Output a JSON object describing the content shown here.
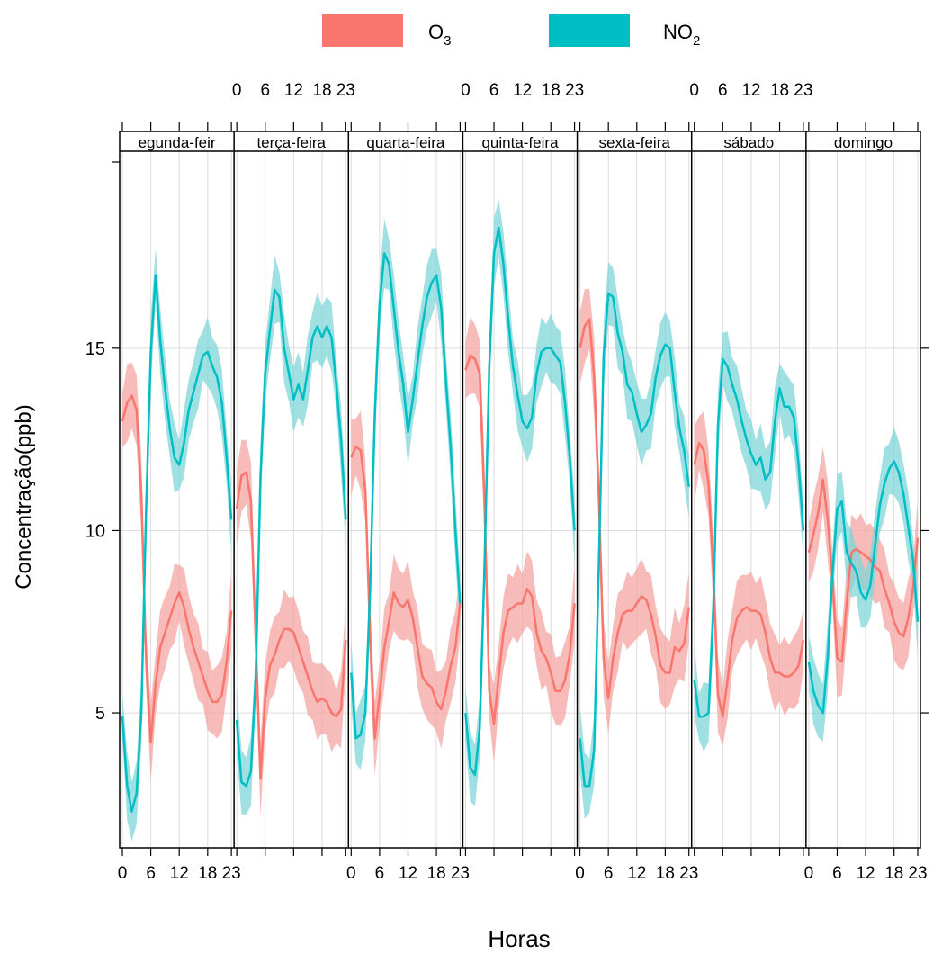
{
  "chart_data": {
    "type": "line",
    "xlabel": "Horas",
    "ylabel": "Concentração(ppb)",
    "xlim": [
      0,
      23
    ],
    "ylim": [
      1.3,
      20.4
    ],
    "yticks": [
      5,
      10,
      15
    ],
    "xticks": [
      0,
      6,
      12,
      18,
      23
    ],
    "xtick_labels": [
      "0",
      "6",
      "12",
      "18",
      "23"
    ],
    "grid": true,
    "legend_position": "top",
    "panels": [
      "egunda-feir",
      "terça-feira",
      "quarta-feira",
      "quinta-feira",
      "sexta-feira",
      "sábado",
      "domingo"
    ],
    "hours": [
      0,
      1,
      2,
      3,
      4,
      5,
      6,
      7,
      8,
      9,
      10,
      11,
      12,
      13,
      14,
      15,
      16,
      17,
      18,
      19,
      20,
      21,
      22,
      23
    ],
    "series": [
      {
        "name": "O3",
        "label_main": "O",
        "label_sub": "3",
        "color": "#F8766D",
        "band_color": "#F4A6A1",
        "ci_halfwidth": 0.9,
        "panels": [
          [
            13.0,
            13.5,
            13.7,
            13.3,
            11.0,
            6.5,
            4.2,
            5.8,
            6.8,
            7.2,
            7.6,
            8.0,
            8.3,
            7.9,
            7.3,
            6.8,
            6.4,
            6.0,
            5.6,
            5.3,
            5.3,
            5.5,
            6.4,
            7.8
          ],
          [
            10.6,
            11.5,
            11.6,
            10.8,
            7.0,
            3.2,
            5.4,
            6.3,
            6.6,
            7.0,
            7.3,
            7.3,
            7.2,
            6.8,
            6.4,
            6.0,
            5.6,
            5.3,
            5.4,
            5.3,
            5.0,
            4.9,
            5.1,
            7.0
          ],
          [
            12.0,
            12.3,
            12.2,
            11.1,
            7.1,
            4.3,
            5.5,
            6.8,
            7.5,
            8.3,
            8.0,
            7.9,
            8.1,
            7.6,
            6.8,
            6.0,
            5.8,
            5.7,
            5.3,
            5.1,
            5.6,
            6.3,
            6.8,
            8.0
          ],
          [
            14.4,
            14.8,
            14.7,
            14.3,
            10.8,
            5.6,
            4.7,
            6.0,
            7.2,
            7.8,
            7.9,
            8.0,
            8.0,
            8.4,
            8.2,
            7.2,
            6.7,
            6.5,
            6.1,
            5.6,
            5.6,
            5.9,
            6.6,
            8.0
          ],
          [
            15.0,
            15.6,
            15.8,
            14.2,
            10.9,
            6.5,
            5.4,
            6.5,
            7.2,
            7.7,
            7.8,
            7.8,
            8.0,
            8.2,
            8.1,
            7.7,
            7.1,
            6.3,
            6.1,
            6.1,
            6.8,
            6.7,
            6.9,
            7.9
          ],
          [
            11.8,
            12.4,
            12.2,
            11.3,
            8.9,
            5.5,
            4.9,
            5.9,
            7.0,
            7.6,
            7.8,
            7.9,
            7.8,
            7.8,
            7.7,
            7.2,
            6.5,
            6.1,
            6.1,
            6.0,
            6.0,
            6.1,
            6.3,
            7.0
          ],
          [
            9.4,
            9.9,
            10.5,
            11.4,
            10.3,
            8.7,
            6.5,
            6.4,
            8.0,
            9.4,
            9.5,
            9.4,
            9.3,
            9.2,
            9.0,
            8.9,
            8.4,
            8.0,
            7.5,
            7.2,
            7.1,
            7.6,
            8.4,
            9.8
          ]
        ]
      },
      {
        "name": "NO2",
        "label_main": "NO",
        "label_sub": "2",
        "color": "#00BFC4",
        "band_color": "#7FD5D8",
        "ci_halfwidth": 0.8,
        "panels": [
          [
            4.9,
            3.0,
            2.3,
            2.8,
            5.0,
            10.5,
            14.9,
            17.0,
            15.2,
            13.9,
            12.8,
            12.0,
            11.8,
            12.4,
            13.3,
            13.8,
            14.3,
            14.8,
            14.9,
            14.5,
            14.2,
            13.5,
            12.0,
            10.3
          ],
          [
            4.8,
            3.1,
            3.0,
            3.4,
            6.0,
            11.5,
            14.3,
            15.5,
            16.6,
            16.4,
            15.0,
            14.3,
            13.6,
            14.0,
            13.6,
            14.4,
            15.3,
            15.6,
            15.3,
            15.6,
            15.3,
            14.0,
            12.5,
            10.3
          ],
          [
            6.1,
            4.3,
            4.4,
            5.0,
            8.4,
            13.2,
            16.2,
            17.6,
            17.3,
            16.1,
            14.9,
            14.0,
            12.7,
            13.6,
            14.6,
            15.6,
            16.4,
            16.8,
            17.0,
            16.1,
            14.1,
            12.3,
            10.0,
            8.0
          ],
          [
            5.0,
            3.5,
            3.3,
            4.6,
            9.0,
            14.5,
            17.6,
            18.3,
            17.3,
            15.8,
            14.5,
            13.7,
            13.0,
            12.8,
            13.1,
            14.3,
            14.9,
            15.0,
            15.0,
            14.8,
            14.6,
            13.5,
            12.0,
            10.0
          ],
          [
            4.3,
            3.0,
            3.0,
            4.0,
            9.1,
            14.8,
            16.5,
            16.4,
            15.4,
            14.9,
            14.0,
            13.8,
            13.2,
            12.7,
            12.9,
            13.2,
            14.2,
            14.8,
            15.1,
            15.0,
            13.8,
            12.8,
            12.2,
            11.2
          ],
          [
            5.9,
            4.9,
            4.9,
            5.0,
            7.8,
            12.9,
            14.7,
            14.5,
            14.0,
            13.6,
            13.0,
            12.5,
            12.1,
            11.8,
            12.0,
            11.4,
            11.6,
            13.0,
            13.9,
            13.4,
            13.4,
            13.1,
            11.8,
            10.0
          ],
          [
            6.4,
            5.6,
            5.2,
            5.0,
            6.5,
            8.8,
            10.6,
            10.8,
            9.4,
            9.1,
            8.9,
            8.3,
            8.1,
            8.5,
            9.6,
            10.7,
            11.3,
            11.7,
            11.9,
            11.6,
            11.0,
            10.1,
            9.2,
            7.5
          ]
        ]
      }
    ]
  }
}
